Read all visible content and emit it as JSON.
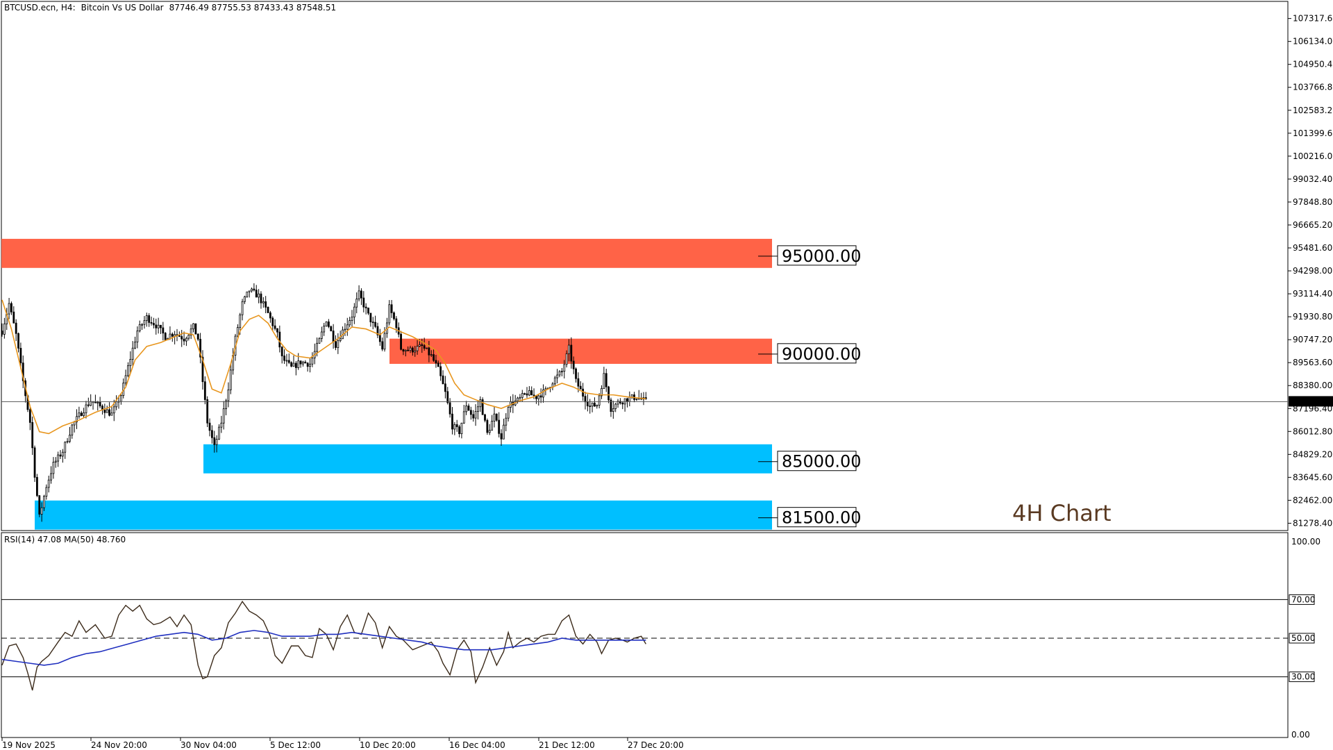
{
  "header": {
    "symbol": "BTCUSD.ecn, H4:",
    "description": "Bitcoin Vs US Dollar",
    "ohlc": "87746.49 87755.53 87433.43 87548.51"
  },
  "watermark": "4H Chart",
  "colors": {
    "resistance_zone": "#ff6347",
    "support_zone": "#00bfff",
    "candle": "#000000",
    "ma_line": "#e8961e",
    "rsi_line": "#3b2a1a",
    "rsi_ma_line": "#1f2fbf"
  },
  "chart_data": [
    {
      "type": "candlestick",
      "name": "price",
      "ylim": [
        80900,
        108200
      ],
      "y_ticks": [
        "107317.60",
        "106134.00",
        "104950.40",
        "103766.80",
        "102583.20",
        "101399.60",
        "100216.00",
        "99032.40",
        "97848.80",
        "96665.20",
        "95481.60",
        "94298.00",
        "93114.40",
        "91930.80",
        "90747.20",
        "89563.60",
        "88380.00",
        "87196.40",
        "86012.80",
        "84829.20",
        "83645.60",
        "82462.00",
        "81278.40"
      ],
      "x_tick_labels": [
        "19 Nov 2025",
        "24 Nov 20:00",
        "30 Nov 04:00",
        "5 Dec 12:00",
        "10 Dec 20:00",
        "16 Dec 04:00",
        "21 Dec 12:00",
        "27 Dec 20:00"
      ],
      "last_price": "87548.33",
      "levels": [
        {
          "label": "95000.00",
          "kind": "resistance",
          "zone": [
            94450,
            95950
          ]
        },
        {
          "label": "90000.00",
          "kind": "resistance",
          "zone": [
            89500,
            90800
          ]
        },
        {
          "label": "85000.00",
          "kind": "support",
          "zone": [
            83850,
            85350
          ]
        },
        {
          "label": "81500.00",
          "kind": "support",
          "zone": [
            80950,
            82450
          ]
        }
      ],
      "close_path": [
        [
          0,
          91200
        ],
        [
          3,
          92600
        ],
        [
          6,
          91000
        ],
        [
          9,
          88600
        ],
        [
          12,
          86500
        ],
        [
          14,
          83800
        ],
        [
          16,
          81600
        ],
        [
          19,
          83200
        ],
        [
          22,
          84300
        ],
        [
          26,
          85000
        ],
        [
          30,
          86300
        ],
        [
          34,
          87000
        ],
        [
          38,
          87600
        ],
        [
          42,
          87300
        ],
        [
          47,
          86900
        ],
        [
          51,
          87900
        ],
        [
          55,
          89800
        ],
        [
          58,
          91200
        ],
        [
          62,
          91900
        ],
        [
          66,
          91500
        ],
        [
          70,
          90900
        ],
        [
          74,
          91100
        ],
        [
          78,
          90800
        ],
        [
          82,
          91400
        ],
        [
          84,
          90800
        ],
        [
          86,
          88600
        ],
        [
          88,
          86500
        ],
        [
          91,
          85200
        ],
        [
          94,
          86500
        ],
        [
          97,
          88300
        ],
        [
          100,
          90800
        ],
        [
          103,
          92600
        ],
        [
          106,
          93300
        ],
        [
          110,
          93000
        ],
        [
          114,
          92100
        ],
        [
          118,
          91000
        ],
        [
          120,
          89800
        ],
        [
          124,
          89300
        ],
        [
          128,
          89600
        ],
        [
          132,
          89500
        ],
        [
          136,
          90700
        ],
        [
          139,
          91800
        ],
        [
          143,
          90500
        ],
        [
          146,
          91200
        ],
        [
          150,
          92000
        ],
        [
          153,
          93100
        ],
        [
          157,
          92000
        ],
        [
          160,
          91300
        ],
        [
          163,
          90300
        ],
        [
          166,
          92400
        ],
        [
          169,
          91500
        ],
        [
          171,
          90300
        ],
        [
          175,
          90200
        ],
        [
          180,
          90400
        ],
        [
          184,
          89900
        ],
        [
          187,
          89200
        ],
        [
          190,
          88000
        ],
        [
          193,
          86300
        ],
        [
          196,
          86000
        ],
        [
          199,
          87400
        ],
        [
          202,
          86700
        ],
        [
          205,
          87600
        ],
        [
          208,
          85900
        ],
        [
          211,
          86800
        ],
        [
          214,
          85700
        ],
        [
          217,
          87400
        ],
        [
          221,
          87600
        ],
        [
          225,
          88000
        ],
        [
          229,
          87800
        ],
        [
          233,
          88100
        ],
        [
          236,
          88600
        ],
        [
          240,
          89100
        ],
        [
          243,
          90300
        ],
        [
          246,
          88600
        ],
        [
          249,
          87900
        ],
        [
          252,
          87300
        ],
        [
          255,
          87400
        ],
        [
          258,
          88900
        ],
        [
          261,
          87200
        ],
        [
          264,
          87500
        ],
        [
          268,
          87700
        ],
        [
          272,
          87800
        ],
        [
          276,
          87550
        ]
      ],
      "ma_path": [
        [
          0,
          92800
        ],
        [
          4,
          91300
        ],
        [
          8,
          89300
        ],
        [
          12,
          87300
        ],
        [
          16,
          86000
        ],
        [
          20,
          85900
        ],
        [
          26,
          86300
        ],
        [
          33,
          86600
        ],
        [
          40,
          87000
        ],
        [
          47,
          87300
        ],
        [
          53,
          88300
        ],
        [
          57,
          89700
        ],
        [
          62,
          90400
        ],
        [
          68,
          90600
        ],
        [
          74,
          90900
        ],
        [
          78,
          91100
        ],
        [
          82,
          91000
        ],
        [
          86,
          89700
        ],
        [
          90,
          88200
        ],
        [
          94,
          88000
        ],
        [
          98,
          89500
        ],
        [
          102,
          91200
        ],
        [
          106,
          91800
        ],
        [
          110,
          92000
        ],
        [
          114,
          91600
        ],
        [
          118,
          90800
        ],
        [
          122,
          90200
        ],
        [
          126,
          89900
        ],
        [
          132,
          89800
        ],
        [
          138,
          90300
        ],
        [
          144,
          90800
        ],
        [
          150,
          91400
        ],
        [
          156,
          91300
        ],
        [
          162,
          91000
        ],
        [
          166,
          91400
        ],
        [
          170,
          91200
        ],
        [
          176,
          90900
        ],
        [
          182,
          90500
        ],
        [
          186,
          90200
        ],
        [
          190,
          89500
        ],
        [
          194,
          88500
        ],
        [
          198,
          87900
        ],
        [
          202,
          87700
        ],
        [
          208,
          87400
        ],
        [
          214,
          87200
        ],
        [
          218,
          87400
        ],
        [
          222,
          87600
        ],
        [
          228,
          87800
        ],
        [
          234,
          88200
        ],
        [
          240,
          88500
        ],
        [
          245,
          88300
        ],
        [
          250,
          88000
        ],
        [
          256,
          87900
        ],
        [
          262,
          87900
        ],
        [
          268,
          87800
        ],
        [
          276,
          87700
        ]
      ]
    },
    {
      "type": "line",
      "name": "RSI",
      "title": "RSI(14) 47.08 MA(50) 48.760",
      "ylim": [
        0,
        100
      ],
      "y_ticks": [
        "100.00",
        "70.00",
        "50.00",
        "30.00",
        "0.00"
      ],
      "levels": [
        70,
        50,
        30
      ],
      "series": [
        {
          "name": "RSI(14)",
          "points": [
            [
              0,
              36
            ],
            [
              3,
              46
            ],
            [
              6,
              47
            ],
            [
              9,
              40
            ],
            [
              11,
              32
            ],
            [
              13,
              23
            ],
            [
              15,
              35
            ],
            [
              17,
              38
            ],
            [
              20,
              41
            ],
            [
              24,
              48
            ],
            [
              27,
              53
            ],
            [
              30,
              51
            ],
            [
              33,
              59
            ],
            [
              36,
              53
            ],
            [
              40,
              57
            ],
            [
              44,
              50
            ],
            [
              47,
              51
            ],
            [
              50,
              62
            ],
            [
              53,
              67
            ],
            [
              56,
              64
            ],
            [
              59,
              67
            ],
            [
              62,
              60
            ],
            [
              65,
              57
            ],
            [
              68,
              58
            ],
            [
              72,
              61
            ],
            [
              75,
              56
            ],
            [
              78,
              62
            ],
            [
              81,
              57
            ],
            [
              84,
              36
            ],
            [
              86,
              29
            ],
            [
              88,
              30
            ],
            [
              91,
              41
            ],
            [
              94,
              45
            ],
            [
              97,
              58
            ],
            [
              100,
              63
            ],
            [
              103,
              69
            ],
            [
              106,
              64
            ],
            [
              109,
              62
            ],
            [
              112,
              59
            ],
            [
              115,
              51
            ],
            [
              117,
              41
            ],
            [
              120,
              37
            ],
            [
              124,
              46
            ],
            [
              127,
              46
            ],
            [
              130,
              41
            ],
            [
              133,
              40
            ],
            [
              136,
              55
            ],
            [
              139,
              52
            ],
            [
              142,
              44
            ],
            [
              145,
              56
            ],
            [
              148,
              62
            ],
            [
              151,
              53
            ],
            [
              154,
              52
            ],
            [
              157,
              63
            ],
            [
              160,
              58
            ],
            [
              163,
              45
            ],
            [
              166,
              56
            ],
            [
              169,
              51
            ],
            [
              172,
              49
            ],
            [
              176,
              44
            ],
            [
              180,
              46
            ],
            [
              184,
              48
            ],
            [
              187,
              43
            ],
            [
              189,
              37
            ],
            [
              192,
              31
            ],
            [
              195,
              44
            ],
            [
              198,
              49
            ],
            [
              201,
              43
            ],
            [
              203,
              27
            ],
            [
              206,
              35
            ],
            [
              209,
              45
            ],
            [
              212,
              36
            ],
            [
              215,
              43
            ],
            [
              217,
              53
            ],
            [
              219,
              45
            ],
            [
              222,
              48
            ],
            [
              225,
              50
            ],
            [
              228,
              48
            ],
            [
              231,
              51
            ],
            [
              234,
              52
            ],
            [
              237,
              52
            ],
            [
              240,
              59
            ],
            [
              243,
              62
            ],
            [
              246,
              51
            ],
            [
              249,
              47
            ],
            [
              252,
              52
            ],
            [
              255,
              48
            ],
            [
              257,
              42
            ],
            [
              260,
              49
            ],
            [
              263,
              50
            ],
            [
              266,
              49
            ],
            [
              268,
              48
            ],
            [
              271,
              50
            ],
            [
              274,
              51
            ],
            [
              276,
              47
            ]
          ]
        },
        {
          "name": "MA(50)",
          "points": [
            [
              0,
              39
            ],
            [
              6,
              38
            ],
            [
              12,
              37
            ],
            [
              18,
              36
            ],
            [
              24,
              37
            ],
            [
              30,
              40
            ],
            [
              36,
              42
            ],
            [
              42,
              43
            ],
            [
              48,
              45
            ],
            [
              54,
              47
            ],
            [
              60,
              49
            ],
            [
              66,
              51
            ],
            [
              72,
              52
            ],
            [
              78,
              53
            ],
            [
              84,
              52
            ],
            [
              90,
              49
            ],
            [
              96,
              50
            ],
            [
              102,
              53
            ],
            [
              108,
              54
            ],
            [
              114,
              53
            ],
            [
              120,
              51
            ],
            [
              126,
              51
            ],
            [
              132,
              51
            ],
            [
              138,
              52
            ],
            [
              144,
              52
            ],
            [
              150,
              53
            ],
            [
              156,
              52
            ],
            [
              162,
              51
            ],
            [
              168,
              50
            ],
            [
              174,
              49
            ],
            [
              180,
              48
            ],
            [
              186,
              46
            ],
            [
              192,
              45
            ],
            [
              198,
              44
            ],
            [
              204,
              44
            ],
            [
              210,
              44
            ],
            [
              216,
              45
            ],
            [
              222,
              46
            ],
            [
              228,
              47
            ],
            [
              234,
              48
            ],
            [
              240,
              50
            ],
            [
              246,
              49
            ],
            [
              252,
              49
            ],
            [
              258,
              49
            ],
            [
              264,
              49
            ],
            [
              270,
              49
            ],
            [
              276,
              49
            ]
          ]
        }
      ]
    }
  ]
}
